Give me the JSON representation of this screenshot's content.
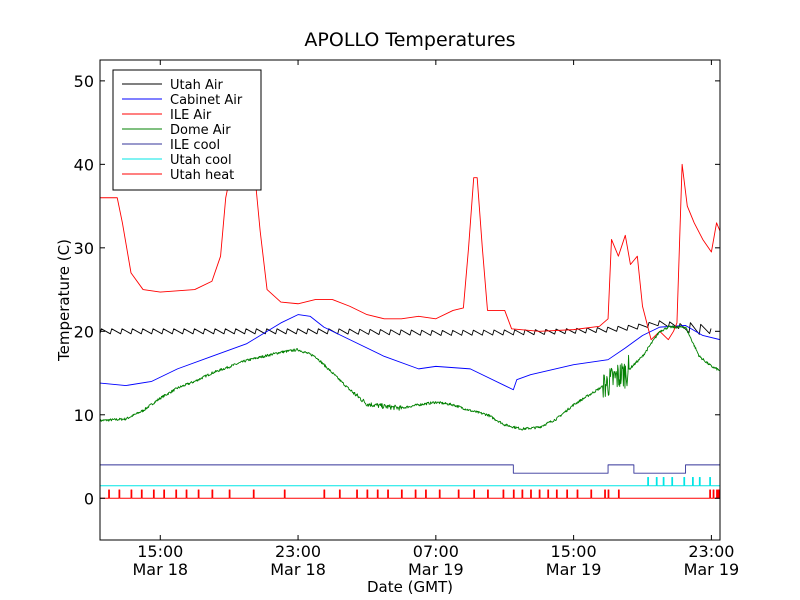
{
  "chart_data": {
    "type": "line",
    "title": "APOLLO Temperatures",
    "xlabel": "Date (GMT)",
    "ylabel": "Temperature (C)",
    "xlim_hours": [
      11.5,
      47.5
    ],
    "ylim": [
      -5,
      52.5
    ],
    "yticks": [
      0,
      10,
      20,
      30,
      40,
      50
    ],
    "xticks": [
      {
        "hour": 15,
        "time": "15:00",
        "date": "Mar 18"
      },
      {
        "hour": 23,
        "time": "23:00",
        "date": "Mar 18"
      },
      {
        "hour": 31,
        "time": "07:00",
        "date": "Mar 19"
      },
      {
        "hour": 39,
        "time": "15:00",
        "date": "Mar 19"
      },
      {
        "hour": 47,
        "time": "23:00",
        "date": "Mar 19"
      }
    ],
    "x_unit_note": "x values are hours since Mar 18 00:00 GMT",
    "legend_position": "top-left",
    "series": [
      {
        "name": "Utah Air",
        "color": "#000000",
        "style": "sawtooth",
        "points": [
          [
            11.5,
            20
          ],
          [
            19,
            20
          ],
          [
            25,
            20
          ],
          [
            31,
            19.8
          ],
          [
            37,
            19.9
          ],
          [
            41,
            20.2
          ],
          [
            42.5,
            20.5
          ],
          [
            44,
            21
          ],
          [
            45.5,
            20.5
          ],
          [
            47,
            20
          ],
          [
            47.5,
            19.8
          ]
        ]
      },
      {
        "name": "Cabinet Air",
        "color": "#0000ff",
        "style": "line",
        "points": [
          [
            11.5,
            13.8
          ],
          [
            13,
            13.5
          ],
          [
            14.5,
            14
          ],
          [
            16,
            15.5
          ],
          [
            18,
            17
          ],
          [
            20,
            18.5
          ],
          [
            22,
            21
          ],
          [
            23,
            22
          ],
          [
            23.7,
            21.8
          ],
          [
            24.5,
            20.5
          ],
          [
            26,
            19
          ],
          [
            28,
            17
          ],
          [
            30,
            15.5
          ],
          [
            31,
            15.8
          ],
          [
            33,
            15.5
          ],
          [
            35,
            13.5
          ],
          [
            35.5,
            13
          ],
          [
            35.7,
            14.2
          ],
          [
            36.5,
            14.8
          ],
          [
            39,
            16
          ],
          [
            40,
            16.3
          ],
          [
            41,
            16.6
          ],
          [
            42,
            18
          ],
          [
            43,
            19.5
          ],
          [
            44,
            20.5
          ],
          [
            45.5,
            20.7
          ],
          [
            46.5,
            19.5
          ],
          [
            47.5,
            19
          ]
        ]
      },
      {
        "name": "ILE Air",
        "color": "#ff0000",
        "style": "line",
        "points": [
          [
            11.5,
            36
          ],
          [
            12.5,
            36
          ],
          [
            12.8,
            33
          ],
          [
            13.3,
            27
          ],
          [
            14,
            25
          ],
          [
            15,
            24.7
          ],
          [
            17,
            25
          ],
          [
            18,
            26
          ],
          [
            18.5,
            29
          ],
          [
            18.8,
            36
          ],
          [
            19.2,
            40
          ],
          [
            20,
            38
          ],
          [
            20.5,
            38.5
          ],
          [
            20.8,
            32
          ],
          [
            21.2,
            25
          ],
          [
            22,
            23.5
          ],
          [
            23,
            23.3
          ],
          [
            24,
            23.8
          ],
          [
            25,
            23.8
          ],
          [
            26,
            23
          ],
          [
            27,
            22
          ],
          [
            28,
            21.5
          ],
          [
            29,
            21.5
          ],
          [
            30,
            21.8
          ],
          [
            31,
            21.5
          ],
          [
            32,
            22.5
          ],
          [
            32.6,
            22.8
          ],
          [
            32.9,
            30
          ],
          [
            33.2,
            38.4
          ],
          [
            33.4,
            38.4
          ],
          [
            33.7,
            30
          ],
          [
            34,
            22.5
          ],
          [
            35,
            22.5
          ],
          [
            35.4,
            20.3
          ],
          [
            37,
            20
          ],
          [
            39,
            20.2
          ],
          [
            40.5,
            20.6
          ],
          [
            41,
            21.5
          ],
          [
            41.2,
            31
          ],
          [
            41.6,
            29
          ],
          [
            42,
            31.5
          ],
          [
            42.3,
            28
          ],
          [
            42.7,
            29
          ],
          [
            43,
            23
          ],
          [
            43.5,
            19
          ],
          [
            44,
            20
          ],
          [
            44.5,
            19
          ],
          [
            44.8,
            20
          ],
          [
            45,
            21
          ],
          [
            45.3,
            40
          ],
          [
            45.6,
            35
          ],
          [
            46,
            33
          ],
          [
            46.5,
            31
          ],
          [
            47,
            29.5
          ],
          [
            47.3,
            33
          ],
          [
            47.5,
            32
          ]
        ]
      },
      {
        "name": "Dome Air",
        "color": "#008000",
        "style": "noisy",
        "points": [
          [
            11.5,
            9.3
          ],
          [
            13,
            9.5
          ],
          [
            14,
            10.5
          ],
          [
            15,
            12
          ],
          [
            16,
            13.2
          ],
          [
            17,
            14
          ],
          [
            18,
            15
          ],
          [
            20,
            16.5
          ],
          [
            22,
            17.5
          ],
          [
            23,
            17.8
          ],
          [
            24,
            17
          ],
          [
            25,
            15
          ],
          [
            26,
            13
          ],
          [
            27,
            11.3
          ],
          [
            28,
            11
          ],
          [
            29,
            10.8
          ],
          [
            30,
            11.2
          ],
          [
            31,
            11.5
          ],
          [
            32,
            11.2
          ],
          [
            33,
            10.5
          ],
          [
            34,
            10
          ],
          [
            35,
            8.8
          ],
          [
            36,
            8.3
          ],
          [
            37,
            8.5
          ],
          [
            38,
            9.5
          ],
          [
            39,
            11.2
          ],
          [
            40,
            12.5
          ],
          [
            41,
            13.8
          ],
          [
            41.5,
            14.5
          ],
          [
            42,
            15
          ],
          [
            42.5,
            16
          ],
          [
            43,
            17
          ],
          [
            43.5,
            18.5
          ],
          [
            44,
            20
          ],
          [
            44.5,
            20.5
          ],
          [
            45.5,
            20.5
          ],
          [
            46.3,
            17
          ],
          [
            47,
            15.8
          ],
          [
            47.5,
            15.3
          ]
        ]
      },
      {
        "name": "ILE cool",
        "color": "#333399",
        "style": "step",
        "points": [
          [
            11.5,
            4
          ],
          [
            35.5,
            4
          ],
          [
            35.5,
            3
          ],
          [
            41,
            3
          ],
          [
            41,
            4
          ],
          [
            42.5,
            4
          ],
          [
            42.5,
            3
          ],
          [
            45.5,
            3
          ],
          [
            45.5,
            4
          ],
          [
            47.5,
            4
          ]
        ]
      },
      {
        "name": "Utah cool",
        "color": "#00e5e5",
        "style": "pulses",
        "base": 1.5,
        "peak": 2.5,
        "pulses": [
          43.3,
          43.8,
          44.2,
          44.7,
          45.4,
          45.9,
          46.3,
          46.9
        ]
      },
      {
        "name": "Utah heat",
        "color": "#ff0000",
        "style": "pulses",
        "base": 0,
        "peak": 1,
        "pulses": [
          12,
          12.6,
          13.3,
          13.9,
          14.6,
          15.2,
          15.9,
          16.5,
          17.2,
          18,
          19,
          20.4,
          22.2,
          24.5,
          25.4,
          26.4,
          27,
          27.6,
          28.2,
          29,
          29.8,
          30.4,
          31.2,
          32.3,
          33.2,
          34,
          34.9,
          35.5,
          36,
          36.5,
          37,
          37.5,
          38,
          38.6,
          39.2,
          40,
          40.8,
          41,
          41.6,
          46.9,
          47.1,
          47.3,
          47.4
        ]
      }
    ]
  }
}
